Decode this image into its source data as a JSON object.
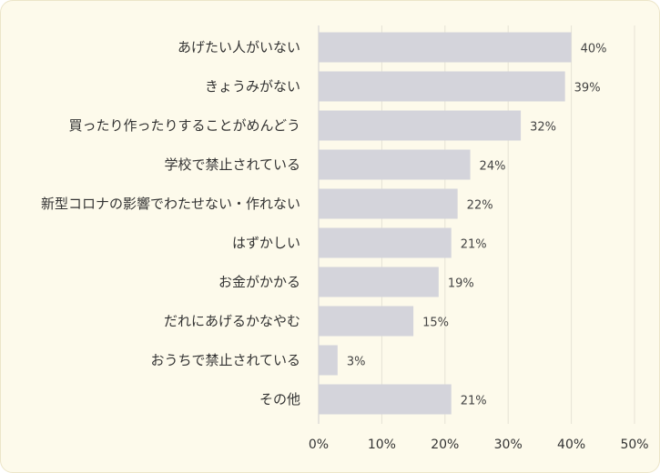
{
  "chart_data": {
    "type": "bar",
    "orientation": "horizontal",
    "categories": [
      "あげたい人がいない",
      "きょうみがない",
      "買ったり作ったりすることがめんどう",
      "学校で禁止されている",
      "新型コロナの影響でわたせない・作れない",
      "はずかしい",
      "お金がかかる",
      "だれにあげるかなやむ",
      "おうちで禁止されている",
      "その他"
    ],
    "values": [
      40,
      39,
      32,
      24,
      22,
      21,
      19,
      15,
      3,
      21
    ],
    "value_labels": [
      "40%",
      "39%",
      "32%",
      "24%",
      "22%",
      "21%",
      "19%",
      "15%",
      "3%",
      "21%"
    ],
    "xlim": [
      0,
      50
    ],
    "xticks": [
      0,
      10,
      20,
      30,
      40,
      50
    ],
    "xtick_labels": [
      "0%",
      "10%",
      "20%",
      "30%",
      "40%",
      "50%"
    ],
    "grid": "vertical",
    "bar_color": "#d4d4db",
    "background_color": "#fdfaeb",
    "title": "",
    "xlabel": "",
    "ylabel": ""
  }
}
